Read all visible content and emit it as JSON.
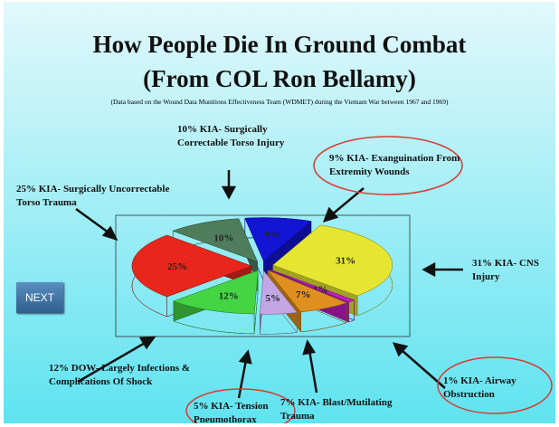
{
  "chart_data": {
    "type": "pie",
    "title": "How People Die In Ground Combat",
    "subtitle": "(From COL Ron Bellamy)",
    "note": "(Data based on the Wound Data Munitions Effectiveness Team (WDMET) during the Vietnam War between 1967 and 1969)",
    "categories": [
      "25% KIA- Surgically Uncorrectable Torso Trauma",
      "10% KIA- Surgically Correctable Torso Injury",
      "9% KIA- Exanguination From Extremity Wounds",
      "31% KIA- CNS Injury",
      "1% KIA- Airway Obstruction",
      "7% KIA- Blast/Mutilating Trauma",
      "5% KIA- Tension Pneumothorax",
      "12% DOW- Largely Infections & Complications Of Shock"
    ],
    "values": [
      25,
      10,
      9,
      31,
      1,
      7,
      5,
      12
    ],
    "value_labels": [
      "25%",
      "10%",
      "9%",
      "31%",
      "1%",
      "7%",
      "5%",
      "12%"
    ],
    "colors": [
      "#e8261c",
      "#4f7d5c",
      "#1414d4",
      "#e6e632",
      "#c21ec2",
      "#e0901e",
      "#c4a6e6",
      "#44d444"
    ]
  },
  "button": "NEXT"
}
